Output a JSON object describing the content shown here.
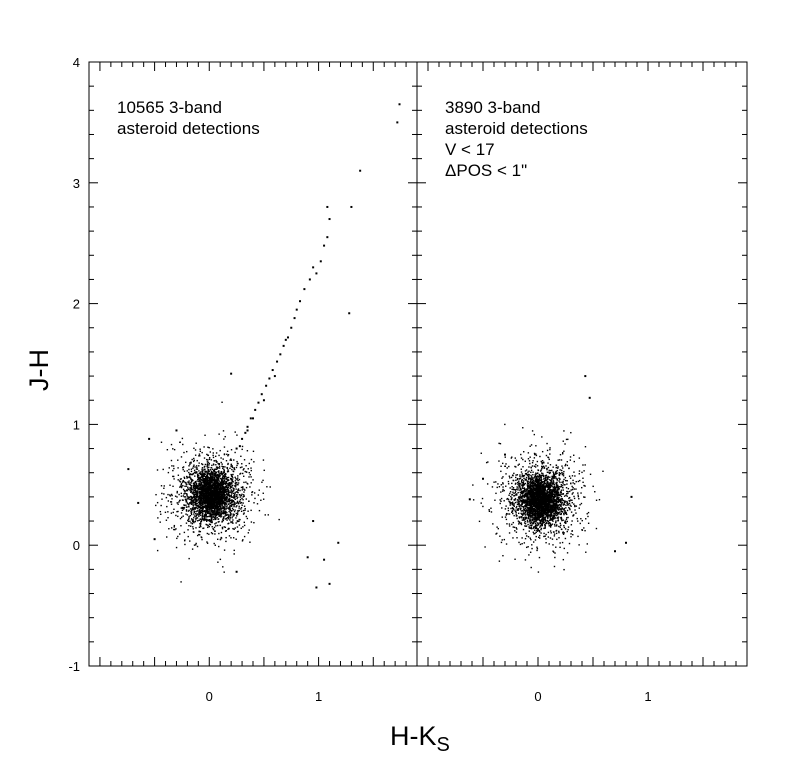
{
  "chart_data": {
    "type": "scatter",
    "xlabel": "H-K",
    "xlabel_sub": "S",
    "ylabel": "J-H",
    "xlim": [
      -1.1,
      1.9
    ],
    "ylim": [
      -1,
      4
    ],
    "x_ticks": [
      0,
      1
    ],
    "x_tick_labels": [
      "0",
      "1"
    ],
    "y_ticks": [
      -1,
      0,
      1,
      2,
      3,
      4
    ],
    "y_tick_labels": [
      "-1",
      "0",
      "1",
      "2",
      "3",
      "4"
    ],
    "panels": [
      {
        "annotation": [
          "10565 3-band",
          "asteroid detections"
        ],
        "series": [
          {
            "cluster": {
              "center": [
                0.02,
                0.42
              ],
              "count": 10565
            },
            "branch_points": [
              [
                0.28,
                0.82
              ],
              [
                0.3,
                0.88
              ],
              [
                0.33,
                0.93
              ],
              [
                0.35,
                0.98
              ],
              [
                0.38,
                1.05
              ],
              [
                0.42,
                1.12
              ],
              [
                0.45,
                1.18
              ],
              [
                0.48,
                1.25
              ],
              [
                0.52,
                1.32
              ],
              [
                0.55,
                1.38
              ],
              [
                0.58,
                1.45
              ],
              [
                0.62,
                1.52
              ],
              [
                0.65,
                1.58
              ],
              [
                0.68,
                1.65
              ],
              [
                0.72,
                1.72
              ],
              [
                0.75,
                1.8
              ],
              [
                0.78,
                1.88
              ],
              [
                0.8,
                1.95
              ],
              [
                0.83,
                2.02
              ],
              [
                0.87,
                2.12
              ],
              [
                0.92,
                2.2
              ],
              [
                0.95,
                2.3
              ],
              [
                0.98,
                2.25
              ],
              [
                1.02,
                2.35
              ],
              [
                1.05,
                2.48
              ],
              [
                1.08,
                2.55
              ],
              [
                1.1,
                2.7
              ],
              [
                1.08,
                2.8
              ],
              [
                1.3,
                2.8
              ],
              [
                1.38,
                3.1
              ],
              [
                1.72,
                3.5
              ],
              [
                1.74,
                3.65
              ],
              [
                1.28,
                1.92
              ],
              [
                0.7,
                1.7
              ],
              [
                0.6,
                1.4
              ],
              [
                0.5,
                1.2
              ],
              [
                0.4,
                1.05
              ],
              [
                0.35,
                0.95
              ],
              [
                0.25,
                0.8
              ],
              [
                0.2,
                1.42
              ]
            ],
            "outliers": [
              [
                -0.74,
                0.63
              ],
              [
                -0.65,
                0.35
              ],
              [
                -0.55,
                0.88
              ],
              [
                -0.5,
                0.05
              ],
              [
                1.1,
                -0.32
              ],
              [
                0.98,
                -0.35
              ],
              [
                1.18,
                0.02
              ],
              [
                0.95,
                0.2
              ],
              [
                1.05,
                -0.12
              ],
              [
                0.9,
                -0.1
              ],
              [
                0.25,
                -0.22
              ],
              [
                -0.3,
                0.95
              ]
            ]
          }
        ]
      },
      {
        "annotation": [
          "3890 3-band",
          "asteroid detections",
          "V < 17",
          "ΔPOS < 1\""
        ],
        "series": [
          {
            "cluster": {
              "center": [
                0.03,
                0.38
              ],
              "count": 3890
            },
            "branch_points": [],
            "outliers": [
              [
                0.43,
                1.4
              ],
              [
                0.47,
                1.22
              ],
              [
                -0.62,
                0.38
              ],
              [
                -0.5,
                0.55
              ],
              [
                0.8,
                0.02
              ],
              [
                0.85,
                0.4
              ],
              [
                0.7,
                -0.05
              ],
              [
                -0.3,
                0.75
              ]
            ]
          }
        ]
      }
    ]
  }
}
